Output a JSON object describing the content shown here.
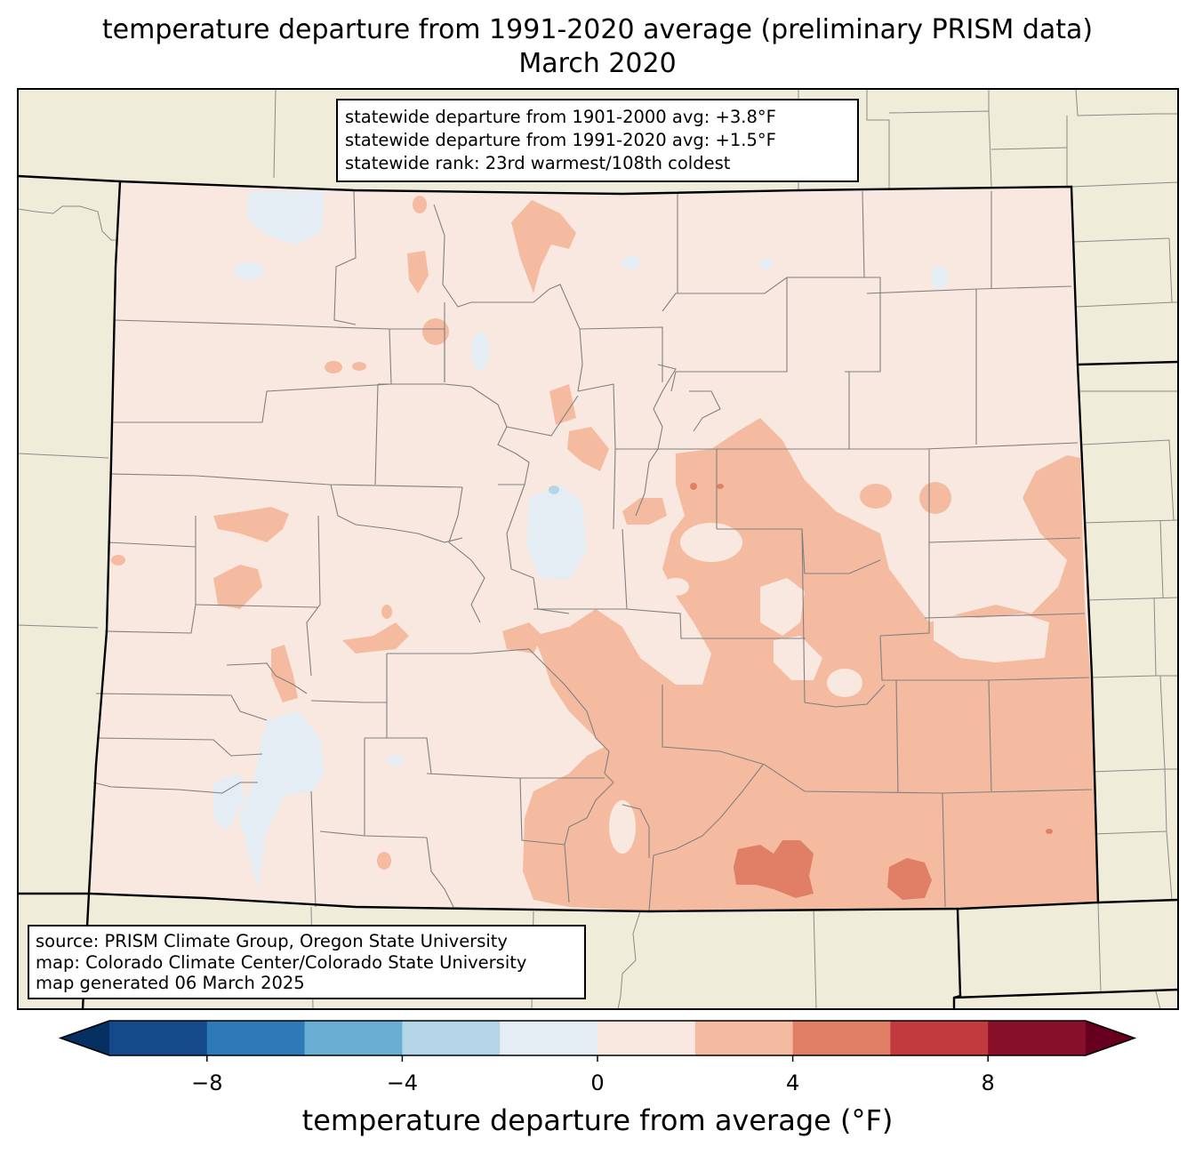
{
  "title": {
    "line1": "temperature departure from 1991-2020 average (preliminary PRISM data)",
    "line2": "March 2020"
  },
  "stats": {
    "line1": "statewide departure from 1901-2000 avg: +3.8°F",
    "line2": "statewide departure from 1991-2020 avg: +1.5°F",
    "line3": "statewide rank: 23rd warmest/108th coldest"
  },
  "source": {
    "line1": "source: PRISM Climate Group, Oregon State University",
    "line2": "map: Colorado Climate Center/Colorado State University",
    "line3": "map generated 06 March 2025"
  },
  "colorbar": {
    "label": "temperature departure from average (°F)",
    "ticks": [
      "−8",
      "−4",
      "0",
      "4",
      "8"
    ],
    "tick_values": [
      -8,
      -4,
      0,
      4,
      8
    ],
    "range": [
      -10,
      10
    ],
    "bin_edges": [
      -10,
      -8,
      -6,
      -4,
      -2,
      0,
      2,
      4,
      6,
      8,
      10
    ],
    "colors": [
      "#053061",
      "#154a8a",
      "#2e7ab8",
      "#6aaed4",
      "#b3d5e7",
      "#e4edf4",
      "#f8e8df",
      "#f5bba0",
      "#e07e66",
      "#c03a3e",
      "#870f2a",
      "#67001f"
    ],
    "extend": "both"
  },
  "map": {
    "background_color": "#efedd9",
    "region": "Colorado",
    "dominant_bin": "0 to 2",
    "warm_region": "southeast plains 2 to 4, local 4 to 6",
    "cool_region": "northwest and southwest mountain valleys -2 to 0"
  }
}
